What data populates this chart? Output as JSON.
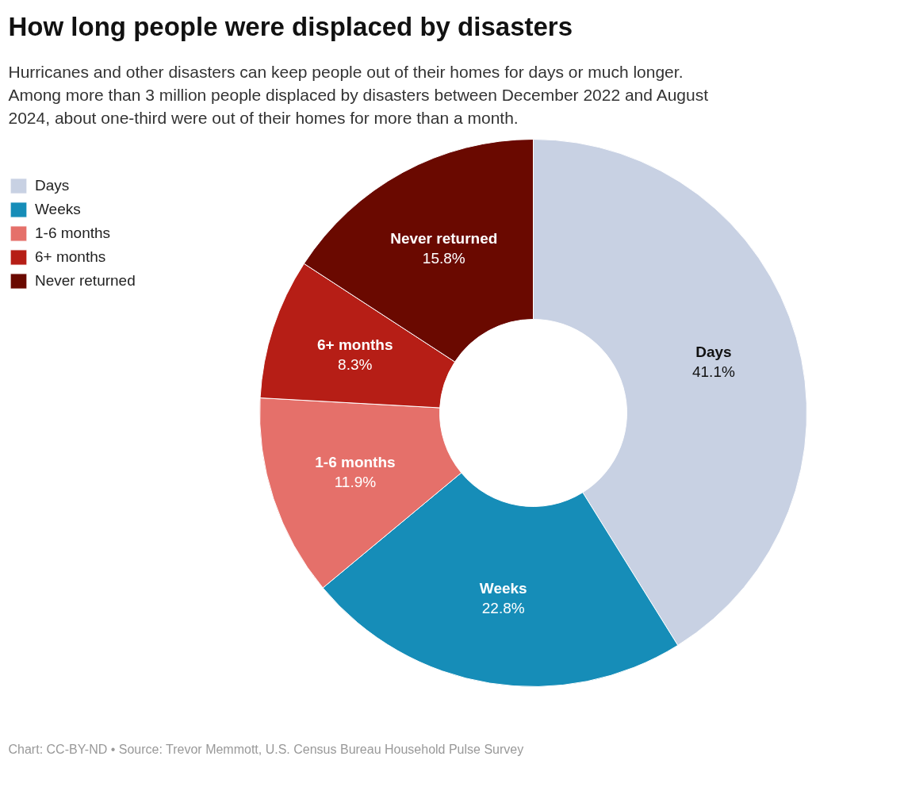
{
  "chart_data": {
    "type": "donut",
    "title": "How long people were displaced by disasters",
    "subtitle": "Hurricanes and other disasters can keep people out of their homes for days or much longer. Among more than 3 million people displaced by disasters between December 2022 and August 2024, about one-third were out of their homes for more than a month.",
    "categories": [
      "Days",
      "Weeks",
      "1-6 months",
      "6+ months",
      "Never returned"
    ],
    "values": [
      41.1,
      22.8,
      11.9,
      8.3,
      15.8
    ],
    "colors": [
      "#c8d1e3",
      "#168db8",
      "#e5706a",
      "#b61e16",
      "#6a0900"
    ],
    "value_labels": [
      "41.1%",
      "22.8%",
      "11.9%",
      "8.3%",
      "15.8%"
    ],
    "legend": "top left",
    "annotations": [
      "Chart: CC-BY-ND • Source: Trevor Memmott, U.S. Census Bureau Household Pulse Survey"
    ]
  }
}
